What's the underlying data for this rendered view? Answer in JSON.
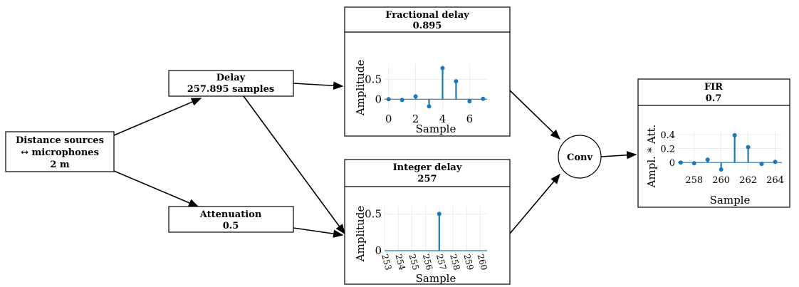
{
  "nodes": {
    "distance": {
      "line1": "Distance sources",
      "line2": "↔ microphones",
      "line3": "2 m"
    },
    "delay": {
      "title": "Delay",
      "value": "257.895 samples"
    },
    "attenuation": {
      "title": "Attenuation",
      "value": "0.5"
    },
    "conv": {
      "label": "Conv"
    }
  },
  "panels": {
    "fractional": {
      "title": "Fractional delay",
      "value": "0.895"
    },
    "integer": {
      "title": "Integer delay",
      "value": "257"
    },
    "fir": {
      "title": "FIR",
      "value": "0.7"
    }
  },
  "colors": {
    "stem": "#1f77b4"
  },
  "chart_data": [
    {
      "id": "fractional",
      "type": "stem",
      "xlabel": "Sample",
      "ylabel": "Amplitude",
      "x": [
        0,
        1,
        2,
        3,
        4,
        5,
        6,
        7
      ],
      "values": [
        0.0,
        -0.02,
        0.07,
        -0.18,
        0.78,
        0.45,
        -0.05,
        0.01
      ],
      "xticks": [
        "0",
        "2",
        "4",
        "6"
      ],
      "xtick_values": [
        0,
        2,
        4,
        6
      ],
      "yticks": [
        "0",
        "0.5"
      ],
      "ytick_values": [
        0,
        0.5
      ],
      "xlim": [
        -0.3,
        7.3
      ],
      "ylim": [
        -0.28,
        0.88
      ]
    },
    {
      "id": "integer",
      "type": "stem",
      "xlabel": "Sample",
      "ylabel": "Amplitude",
      "x": [
        257
      ],
      "values": [
        0.5
      ],
      "xticks": [
        "253",
        "254",
        "255",
        "256",
        "257",
        "258",
        "259",
        "260"
      ],
      "xtick_values": [
        253,
        254,
        255,
        256,
        257,
        258,
        259,
        260
      ],
      "yticks": [
        "0",
        "0.5"
      ],
      "ytick_values": [
        0,
        0.5
      ],
      "xlim": [
        253,
        260.5
      ],
      "ylim": [
        0,
        0.6
      ]
    },
    {
      "id": "fir",
      "type": "stem",
      "xlabel": "Sample",
      "ylabel": "Ampl. * Att.",
      "x": [
        257,
        258,
        259,
        260,
        261,
        262,
        263,
        264
      ],
      "values": [
        0.0,
        -0.01,
        0.04,
        -0.1,
        0.39,
        0.22,
        -0.02,
        0.01
      ],
      "xticks": [
        "258",
        "260",
        "262",
        "264"
      ],
      "xtick_values": [
        258,
        260,
        262,
        264
      ],
      "yticks": [
        "0",
        "0.2",
        "0.4"
      ],
      "ytick_values": [
        0,
        0.2,
        0.4
      ],
      "xlim": [
        256.8,
        264.5
      ],
      "ylim": [
        -0.12,
        0.45
      ]
    }
  ]
}
